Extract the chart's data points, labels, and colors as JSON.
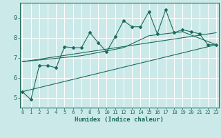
{
  "xlabel": "Humidex (Indice chaleur)",
  "bg_color": "#cce9e9",
  "line_color": "#1a6b5a",
  "x_ticks": [
    0,
    1,
    2,
    3,
    4,
    5,
    6,
    7,
    8,
    9,
    10,
    11,
    12,
    13,
    14,
    15,
    16,
    17,
    18,
    19,
    20,
    21,
    22,
    23
  ],
  "y_ticks": [
    5,
    6,
    7,
    8,
    9
  ],
  "ylim": [
    4.5,
    9.75
  ],
  "xlim": [
    -0.3,
    23.3
  ],
  "series1": [
    5.3,
    4.9,
    6.6,
    6.6,
    6.5,
    7.55,
    7.5,
    7.5,
    8.25,
    7.75,
    7.3,
    8.05,
    8.85,
    8.55,
    8.55,
    9.3,
    8.2,
    9.4,
    8.25,
    8.4,
    8.3,
    8.2,
    7.65,
    7.65
  ],
  "line1_x": [
    0,
    23
  ],
  "line1_y": [
    5.3,
    7.65
  ],
  "line2_x": [
    0,
    7,
    12,
    15,
    19,
    23
  ],
  "line2_y": [
    6.8,
    7.1,
    7.5,
    8.1,
    8.3,
    7.65
  ],
  "line3_x": [
    0,
    23
  ],
  "line3_y": [
    6.8,
    8.25
  ]
}
